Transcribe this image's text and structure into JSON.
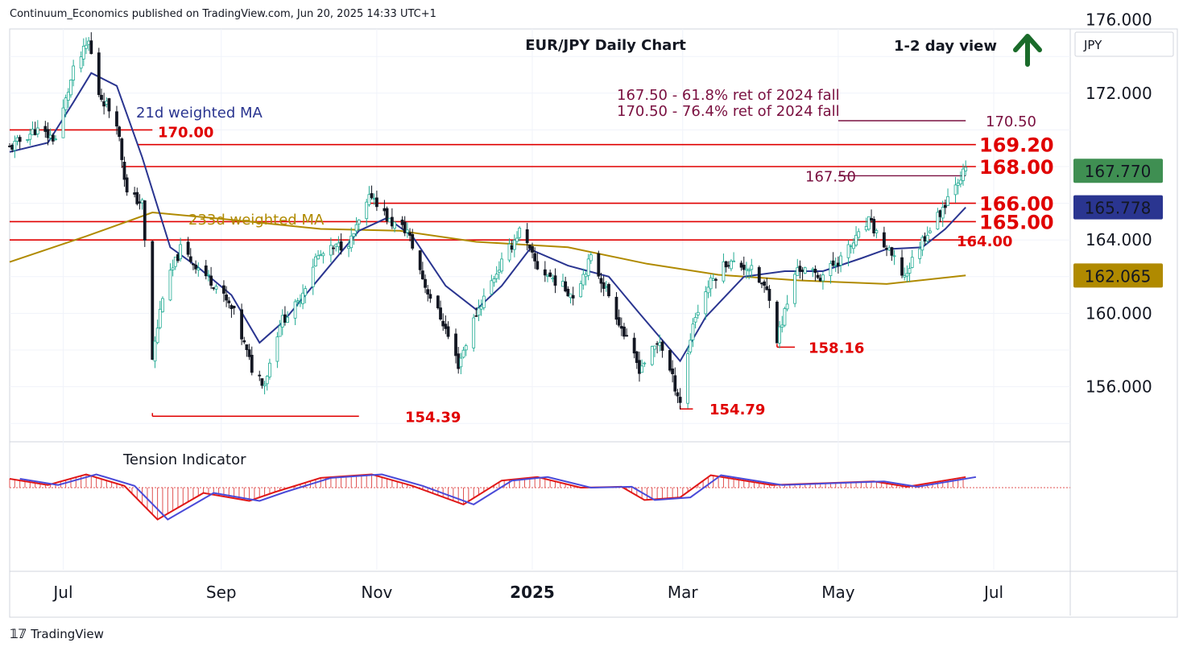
{
  "header": "Continuum_Economics published on TradingView.com, Jun 20, 2025 14:33 UTC+1",
  "footer": {
    "logo": "𝟙𝟟",
    "brand": "TradingView"
  },
  "colors": {
    "up": "#22ab94",
    "down": "#131722",
    "red_level": "#e00000",
    "maroon": "#7a1040",
    "wma21": "#2a3590",
    "wma233": "#b08a00",
    "arrow": "#1a6b2a",
    "tension_bar": "#e05050"
  },
  "chart_data": {
    "type": "candlestick",
    "title": "EUR/JPY Daily Chart",
    "view_label": "1-2 day view",
    "view_icon": "up-arrow-icon",
    "currency": "JPY",
    "y_ticks": [
      "176.000",
      "172.000",
      "164.000",
      "160.000",
      "156.000"
    ],
    "y_range": [
      153.0,
      175.5
    ],
    "x_labels": [
      "Jul",
      "Sep",
      "Nov",
      "2025",
      "Mar",
      "May",
      "Jul"
    ],
    "price_badges": [
      {
        "label": "167.770",
        "value": 167.77,
        "color": "#3f8f52"
      },
      {
        "label": "165.778",
        "value": 165.778,
        "color": "#2a3590"
      },
      {
        "label": "162.065",
        "value": 162.065,
        "color": "#b08a00"
      }
    ],
    "levels": [
      {
        "label": "170.00",
        "value": 170.0,
        "style": "red-left"
      },
      {
        "label": "169.20",
        "value": 169.2,
        "style": "red-right"
      },
      {
        "label": "168.00",
        "value": 168.0,
        "style": "red-right"
      },
      {
        "label": "166.00",
        "value": 166.0,
        "style": "red-right"
      },
      {
        "label": "165.00",
        "value": 165.0,
        "style": "red-right"
      },
      {
        "label": "164.00",
        "value": 164.0,
        "style": "red-mid"
      },
      {
        "label": "170.50",
        "value": 170.5,
        "style": "maroon"
      },
      {
        "label": "167.50",
        "value": 167.5,
        "style": "maroon"
      }
    ],
    "lows": [
      {
        "label": "154.39",
        "value": 154.39
      },
      {
        "label": "154.79",
        "value": 154.79
      },
      {
        "label": "158.16",
        "value": 158.16
      }
    ],
    "notes": [
      "167.50 - 61.8% ret of 2024 fall",
      "170.50 - 76.4% ret of 2024 fall"
    ],
    "series_labels": [
      "21d weighted MA",
      "233d weighted MA"
    ],
    "indicator": {
      "name": "Tension Indicator"
    },
    "close_path": [
      [
        "Jun 10 2024",
        169.0
      ],
      [
        "Jun 20 2024",
        170.0
      ],
      [
        "Jun 28 2024",
        169.5
      ],
      [
        "Jul 5 2024",
        173.2
      ],
      [
        "Jul 11 2024",
        174.8
      ],
      [
        "Jul 15 2024",
        172.0
      ],
      [
        "Jul 22 2024",
        170.5
      ],
      [
        "Jul 26 2024",
        166.5
      ],
      [
        "Aug 1 2024",
        166.0
      ],
      [
        "Aug 5 2024",
        157.5
      ],
      [
        "Aug 9 2024",
        161.0
      ],
      [
        "Aug 16 2024",
        163.5
      ],
      [
        "Aug 23 2024",
        162.5
      ],
      [
        "Aug 30 2024",
        161.5
      ],
      [
        "Sep 6 2024",
        160.0
      ],
      [
        "Sep 13 2024",
        157.0
      ],
      [
        "Sep 18 2024",
        156.2
      ],
      [
        "Sep 24 2024",
        159.5
      ],
      [
        "Oct 1 2024",
        160.5
      ],
      [
        "Oct 8 2024",
        163.0
      ],
      [
        "Oct 15 2024",
        163.5
      ],
      [
        "Oct 22 2024",
        164.0
      ],
      [
        "Oct 30 2024",
        166.5
      ],
      [
        "Nov 6 2024",
        165.0
      ],
      [
        "Nov 13 2024",
        164.5
      ],
      [
        "Nov 20 2024",
        161.5
      ],
      [
        "Nov 27 2024",
        159.5
      ],
      [
        "Dec 3 2024",
        157.2
      ],
      [
        "Dec 10 2024",
        160.0
      ],
      [
        "Dec 17 2024",
        162.0
      ],
      [
        "Dec 27 2024",
        164.5
      ],
      [
        "Jan 3 2025",
        162.5
      ],
      [
        "Jan 10 2025",
        161.8
      ],
      [
        "Jan 17 2025",
        161.0
      ],
      [
        "Jan 24 2025",
        163.0
      ],
      [
        "Jan 31 2025",
        161.0
      ],
      [
        "Feb 7 2025",
        158.5
      ],
      [
        "Feb 12 2025",
        157.0
      ],
      [
        "Feb 20 2025",
        158.5
      ],
      [
        "Feb 28 2025",
        155.2
      ],
      [
        "Mar 5 2025",
        159.5
      ],
      [
        "Mar 11 2025",
        161.5
      ],
      [
        "Mar 18 2025",
        162.8
      ],
      [
        "Mar 27 2025",
        162.5
      ],
      [
        "Apr 4 2025",
        161.0
      ],
      [
        "Apr 7 2025",
        158.6
      ],
      [
        "Apr 15 2025",
        162.5
      ],
      [
        "Apr 24 2025",
        162.0
      ],
      [
        "May 2 2025",
        163.0
      ],
      [
        "May 9 2025",
        164.2
      ],
      [
        "May 13 2025",
        165.0
      ],
      [
        "May 20 2025",
        163.5
      ],
      [
        "May 27 2025",
        162.0
      ],
      [
        "Jun 3 2025",
        164.0
      ],
      [
        "Jun 10 2025",
        165.5
      ],
      [
        "Jun 16 2025",
        167.2
      ],
      [
        "Jun 20 2025",
        167.77
      ]
    ],
    "wma21_path": [
      [
        "Jun 10 2024",
        168.8
      ],
      [
        "Jun 25 2024",
        169.3
      ],
      [
        "Jul 5 2024",
        171.5
      ],
      [
        "Jul 12 2024",
        173.1
      ],
      [
        "Jul 22 2024",
        172.4
      ],
      [
        "Aug 1 2024",
        168.5
      ],
      [
        "Aug 12 2024",
        163.6
      ],
      [
        "Aug 23 2024",
        162.5
      ],
      [
        "Sep 5 2024",
        161.0
      ],
      [
        "Sep 16 2024",
        158.4
      ],
      [
        "Sep 25 2024",
        159.5
      ],
      [
        "Oct 10 2024",
        162.0
      ],
      [
        "Oct 25 2024",
        164.5
      ],
      [
        "Nov 5 2024",
        165.2
      ],
      [
        "Nov 15 2024",
        164.2
      ],
      [
        "Nov 28 2024",
        161.5
      ],
      [
        "Dec 10 2024",
        160.2
      ],
      [
        "Dec 20 2024",
        161.5
      ],
      [
        "Dec 31 2024",
        163.5
      ],
      [
        "Jan 15 2025",
        162.6
      ],
      [
        "Jan 31 2025",
        162.0
      ],
      [
        "Feb 12 2025",
        160.0
      ],
      [
        "Feb 28 2025",
        157.4
      ],
      [
        "Mar 10 2025",
        159.8
      ],
      [
        "Mar 25 2025",
        162.0
      ],
      [
        "Apr 10 2025",
        162.3
      ],
      [
        "Apr 25 2025",
        162.3
      ],
      [
        "May 10 2025",
        163.0
      ],
      [
        "May 20 2025",
        163.5
      ],
      [
        "Jun 3 2025",
        163.6
      ],
      [
        "Jun 12 2025",
        164.6
      ],
      [
        "Jun 20 2025",
        165.778
      ]
    ],
    "wma233_path": [
      [
        "Jun 10 2024",
        162.8
      ],
      [
        "Jul 10 2024",
        164.2
      ],
      [
        "Aug 5 2024",
        165.5
      ],
      [
        "Sep 5 2024",
        165.1
      ],
      [
        "Oct 10 2024",
        164.6
      ],
      [
        "Nov 10 2024",
        164.5
      ],
      [
        "Dec 10 2024",
        163.9
      ],
      [
        "Jan 15 2025",
        163.6
      ],
      [
        "Feb 15 2025",
        162.7
      ],
      [
        "Mar 15 2025",
        162.1
      ],
      [
        "Apr 15 2025",
        161.8
      ],
      [
        "May 20 2025",
        161.6
      ],
      [
        "Jun 20 2025",
        162.065
      ]
    ],
    "tension_path": [
      [
        "Jun 10 2024",
        1.0
      ],
      [
        "Jun 25 2024",
        0.3
      ],
      [
        "Jul 10 2024",
        1.5
      ],
      [
        "Jul 25 2024",
        0.2
      ],
      [
        "Aug 7 2024",
        -3.6
      ],
      [
        "Aug 25 2024",
        -0.6
      ],
      [
        "Sep 12 2024",
        -1.5
      ],
      [
        "Sep 22 2024",
        -0.5
      ],
      [
        "Oct 10 2024",
        1.1
      ],
      [
        "Oct 30 2024",
        1.5
      ],
      [
        "Nov 15 2024",
        0.2
      ],
      [
        "Dec 5 2024",
        -1.9
      ],
      [
        "Dec 20 2024",
        0.8
      ],
      [
        "Jan 3 2025",
        1.2
      ],
      [
        "Jan 20 2025",
        0.0
      ],
      [
        "Feb 5 2025",
        0.1
      ],
      [
        "Feb 14 2025",
        -1.4
      ],
      [
        "Feb 28 2025",
        -1.1
      ],
      [
        "Mar 12 2025",
        1.4
      ],
      [
        "Apr 5 2025",
        0.3
      ],
      [
        "May 15 2025",
        0.7
      ],
      [
        "May 28 2025",
        0.1
      ],
      [
        "Jun 20 2025",
        1.2
      ]
    ]
  }
}
